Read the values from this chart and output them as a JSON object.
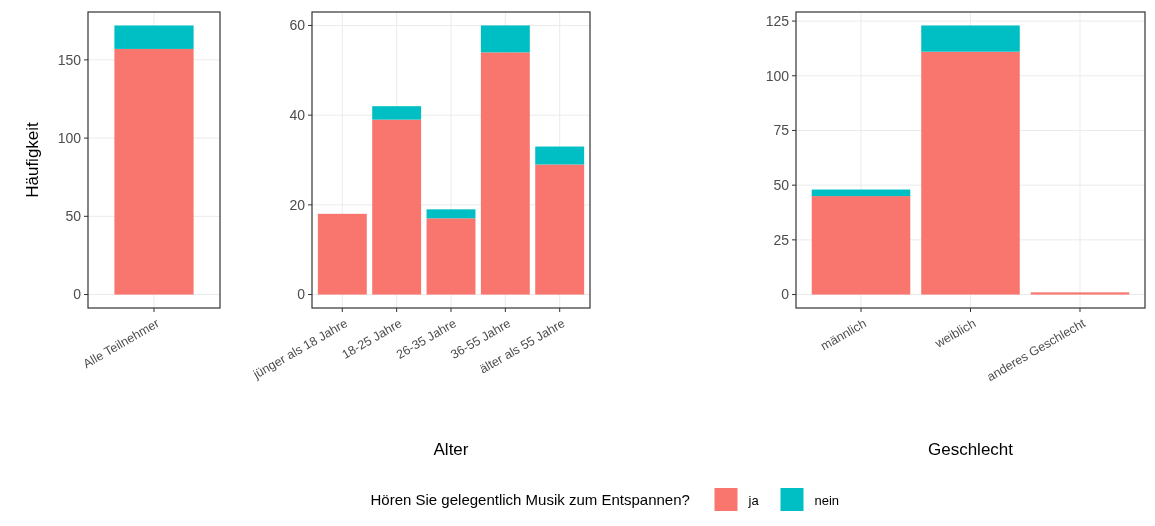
{
  "chart_data": [
    {
      "type": "bar",
      "stacked": true,
      "ylabel": "Häufigkeit",
      "categories": [
        "Alle Teilnehmer"
      ],
      "ylim": [
        -8.6,
        180.6
      ],
      "yticks": [
        0,
        50,
        100,
        150
      ],
      "grid": true,
      "series": [
        {
          "color": "#f8766d",
          "values": [
            157
          ]
        },
        {
          "color": "#00bfc4",
          "values": [
            15
          ]
        }
      ]
    },
    {
      "type": "bar",
      "stacked": true,
      "xlabel": "Alter",
      "categories": [
        "jünger als 18 Jahre",
        "18-25 Jahre",
        "26-35 Jahre",
        "36-55 Jahre",
        "älter als 55 Jahre"
      ],
      "ylim": [
        -3,
        63
      ],
      "yticks": [
        0,
        20,
        40,
        60
      ],
      "grid": true,
      "series": [
        {
          "color": "#f8766d",
          "values": [
            18,
            39,
            17,
            54,
            29
          ]
        },
        {
          "color": "#00bfc4",
          "values": [
            0,
            3,
            2,
            6,
            4
          ]
        }
      ]
    },
    {
      "type": "bar",
      "stacked": true,
      "xlabel": "Geschlecht",
      "legend": "bottom",
      "legend_title": "Hören Sie gelegentlich Musik zum Entspannen?",
      "categories": [
        "männlich",
        "weiblich",
        "anderes Geschlecht"
      ],
      "ylim": [
        -6.15,
        129.15
      ],
      "yticks": [
        0,
        25,
        50,
        75,
        100,
        125
      ],
      "grid": true,
      "series": [
        {
          "name": "ja",
          "color": "#f8766d",
          "values": [
            45,
            111,
            1
          ]
        },
        {
          "name": "nein",
          "color": "#00bfc4",
          "values": [
            3,
            12,
            0
          ]
        }
      ]
    }
  ]
}
